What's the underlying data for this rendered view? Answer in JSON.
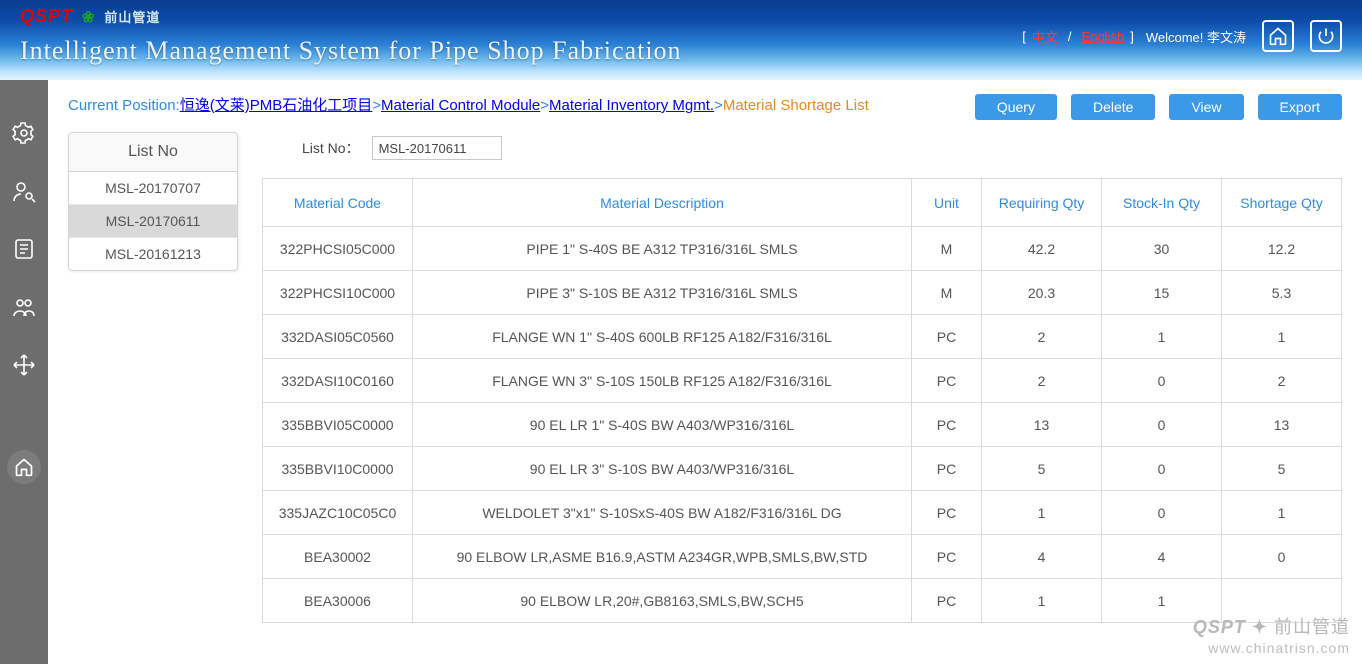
{
  "header": {
    "logo_brand": "QSPT",
    "logo_green_glyph": "❀",
    "logo_cn": "前山管道",
    "system_title": "Intelligent Management System for Pipe Shop Fabrication",
    "lang": {
      "open": "[",
      "close": "]",
      "cn": "中文",
      "sep": "/",
      "en": "English"
    },
    "welcome_prefix": "Welcome! ",
    "welcome_user": "李文涛"
  },
  "breadcrumb": {
    "prefix": "Current Position:",
    "p1": "恒逸(文莱)PMB石油化工项目",
    "s": ">",
    "p2": "Material Control Module",
    "p3": "Material Inventory Mgmt.",
    "current": "Material Shortage List"
  },
  "buttons": {
    "query": "Query",
    "delete": "Delete",
    "view": "View",
    "export": "Export"
  },
  "list_panel": {
    "header": "List No",
    "items": [
      {
        "label": "MSL-20170707",
        "selected": false
      },
      {
        "label": "MSL-20170611",
        "selected": true
      },
      {
        "label": "MSL-20161213",
        "selected": false
      }
    ]
  },
  "listno": {
    "label": "List No：",
    "value": "MSL-20170611"
  },
  "table": {
    "columns": [
      {
        "key": "code",
        "label": "Material Code",
        "class": "col-code"
      },
      {
        "key": "desc",
        "label": "Material Description",
        "class": ""
      },
      {
        "key": "unit",
        "label": "Unit",
        "class": "col-unit"
      },
      {
        "key": "req",
        "label": "Requiring Qty",
        "class": "col-qty"
      },
      {
        "key": "stock",
        "label": "Stock-In Qty",
        "class": "col-qty"
      },
      {
        "key": "short",
        "label": "Shortage Qty",
        "class": "col-qty"
      }
    ],
    "rows": [
      {
        "code": "322PHCSI05C000",
        "desc": "PIPE 1\" S-40S BE A312 TP316/316L SMLS",
        "unit": "M",
        "req": "42.2",
        "stock": "30",
        "short": "12.2"
      },
      {
        "code": "322PHCSI10C000",
        "desc": "PIPE 3\" S-10S BE A312 TP316/316L SMLS",
        "unit": "M",
        "req": "20.3",
        "stock": "15",
        "short": "5.3"
      },
      {
        "code": "332DASI05C0560",
        "desc": "FLANGE WN 1\" S-40S 600LB RF125 A182/F316/316L",
        "unit": "PC",
        "req": "2",
        "stock": "1",
        "short": "1"
      },
      {
        "code": "332DASI10C0160",
        "desc": "FLANGE WN 3\" S-10S 150LB RF125 A182/F316/316L",
        "unit": "PC",
        "req": "2",
        "stock": "0",
        "short": "2"
      },
      {
        "code": "335BBVI05C0000",
        "desc": "90 EL LR 1\" S-40S BW A403/WP316/316L",
        "unit": "PC",
        "req": "13",
        "stock": "0",
        "short": "13"
      },
      {
        "code": "335BBVI10C0000",
        "desc": "90 EL LR 3\" S-10S BW A403/WP316/316L",
        "unit": "PC",
        "req": "5",
        "stock": "0",
        "short": "5"
      },
      {
        "code": "335JAZC10C05C0",
        "desc": "WELDOLET 3\"x1\" S-10SxS-40S BW A182/F316/316L DG",
        "unit": "PC",
        "req": "1",
        "stock": "0",
        "short": "1"
      },
      {
        "code": "BEA30002",
        "desc": "90 ELBOW LR,ASME B16.9,ASTM A234GR,WPB,SMLS,BW,STD",
        "unit": "PC",
        "req": "4",
        "stock": "4",
        "short": "0"
      },
      {
        "code": "BEA30006",
        "desc": "90 ELBOW LR,20#,GB8163,SMLS,BW,SCH5",
        "unit": "PC",
        "req": "1",
        "stock": "1",
        "short": ""
      }
    ]
  },
  "watermark": {
    "brand": "QSPT",
    "cn": "前山管道",
    "url": "www.chinatrisn.com"
  },
  "colors": {
    "link": "#2f8bdc",
    "current": "#e78b1e",
    "button": "#3b99e8",
    "leftbar": "#6d6d6d"
  }
}
